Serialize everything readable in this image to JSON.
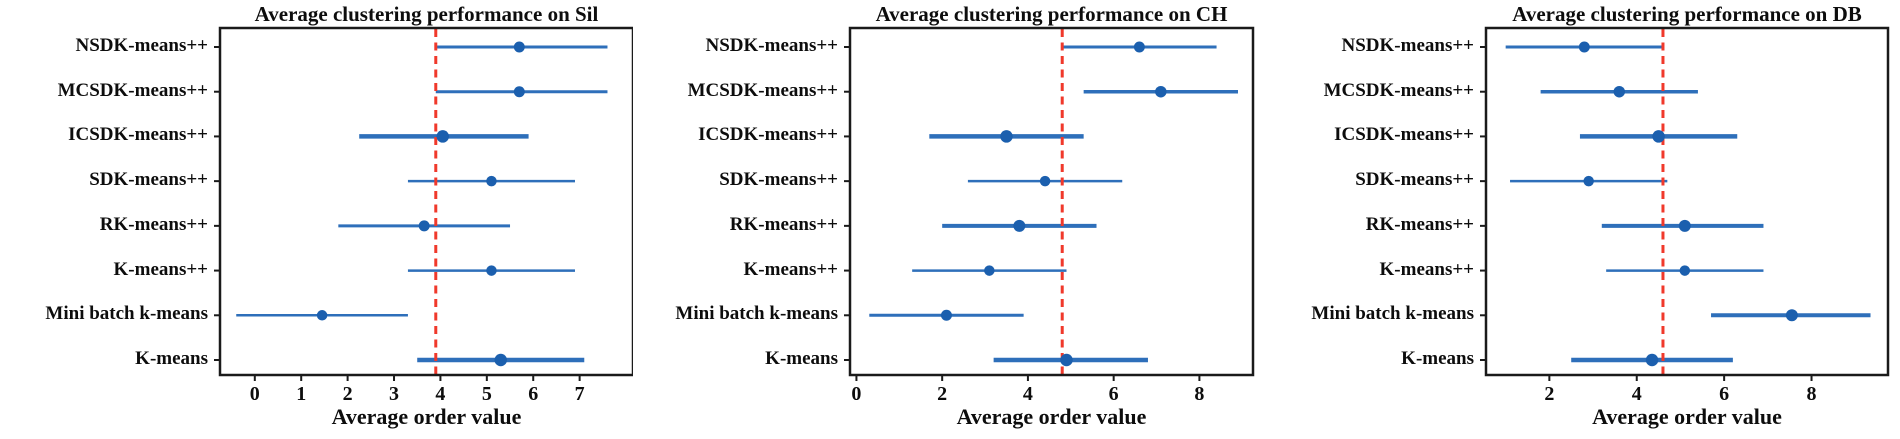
{
  "page": {
    "background": "#ffffff",
    "description": "Three horizontal dot-and-error-bar plots comparing clustering algorithms"
  },
  "colors": {
    "bar_line": "#2e6fba",
    "dot": "#1b5fae",
    "ref_line": "#f0392b",
    "axis": "#1a1a1a",
    "text": "#0d0d0d"
  },
  "chart_data": [
    {
      "type": "scatter",
      "metric": "sil",
      "title": "Average clustering performance on Sil",
      "xlabel": "Average order value",
      "categories": [
        "NSDK-means++",
        "MCSDK-means++",
        "ICSDK-means++",
        "SDK-means++",
        "RK-means++",
        "K-means++",
        "Mini batch k-means",
        "K-means"
      ],
      "series": [
        {
          "name": "mean",
          "values": [
            5.7,
            5.7,
            4.05,
            5.1,
            3.65,
            5.1,
            1.45,
            5.3
          ]
        },
        {
          "name": "ci_low",
          "values": [
            3.9,
            3.9,
            2.25,
            3.3,
            1.8,
            3.3,
            -0.4,
            3.5
          ]
        },
        {
          "name": "ci_high",
          "values": [
            7.6,
            7.6,
            5.9,
            6.9,
            5.5,
            6.9,
            3.3,
            7.1
          ]
        }
      ],
      "line_widths": [
        3,
        3,
        4.5,
        2.5,
        3,
        2.5,
        2.5,
        4.5
      ],
      "ref_line": 3.9,
      "xticks": [
        0,
        1,
        2,
        3,
        4,
        5,
        6,
        7
      ],
      "xlim": [
        -0.75,
        8.15
      ],
      "grid": false,
      "legend": null
    },
    {
      "type": "scatter",
      "metric": "ch",
      "title": "Average clustering performance on CH",
      "xlabel": "Average order value",
      "categories": [
        "NSDK-means++",
        "MCSDK-means++",
        "ICSDK-means++",
        "SDK-means++",
        "RK-means++",
        "K-means++",
        "Mini batch k-means",
        "K-means"
      ],
      "series": [
        {
          "name": "mean",
          "values": [
            6.6,
            7.1,
            3.5,
            4.4,
            3.8,
            3.1,
            2.1,
            4.9
          ]
        },
        {
          "name": "ci_low",
          "values": [
            4.8,
            5.3,
            1.7,
            2.6,
            2.0,
            1.3,
            0.3,
            3.2
          ]
        },
        {
          "name": "ci_high",
          "values": [
            8.4,
            8.9,
            5.3,
            6.2,
            5.6,
            4.9,
            3.9,
            6.8
          ]
        }
      ],
      "line_widths": [
        3,
        3.5,
        4.5,
        2.5,
        4,
        2.5,
        3,
        4.5
      ],
      "ref_line": 4.8,
      "xticks": [
        0,
        2,
        4,
        6,
        8
      ],
      "xlim": [
        -0.15,
        9.25
      ],
      "grid": false,
      "legend": null
    },
    {
      "type": "scatter",
      "metric": "db",
      "title": "Average clustering performance on DB",
      "xlabel": "Average order value",
      "categories": [
        "NSDK-means++",
        "MCSDK-means++",
        "ICSDK-means++",
        "SDK-means++",
        "RK-means++",
        "K-means++",
        "Mini batch k-means",
        "K-means"
      ],
      "series": [
        {
          "name": "mean",
          "values": [
            2.8,
            3.6,
            4.5,
            2.9,
            5.1,
            5.1,
            7.55,
            4.35
          ]
        },
        {
          "name": "ci_low",
          "values": [
            1.0,
            1.8,
            2.7,
            1.1,
            3.2,
            3.3,
            5.7,
            2.5
          ]
        },
        {
          "name": "ci_high",
          "values": [
            4.6,
            5.4,
            6.3,
            4.7,
            6.9,
            6.9,
            9.35,
            6.2
          ]
        }
      ],
      "line_widths": [
        3,
        3.5,
        4.5,
        2.5,
        4,
        2.5,
        4,
        4.5
      ],
      "ref_line": 4.6,
      "xticks": [
        2,
        4,
        6,
        8
      ],
      "xlim": [
        0.55,
        9.75
      ],
      "grid": false,
      "legend": null
    }
  ]
}
